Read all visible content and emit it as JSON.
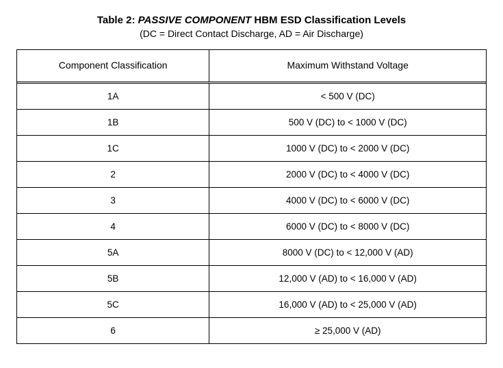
{
  "title": {
    "lead": "Table 2: ",
    "emph": "PASSIVE COMPONENT",
    "rest": " HBM ESD Classification Levels",
    "subtitle": "(DC = Direct Contact Discharge, AD = Air Discharge)"
  },
  "table": {
    "columns": [
      "Component Classification",
      "Maximum Withstand Voltage"
    ],
    "column_widths_pct": [
      41,
      59
    ],
    "rows": [
      [
        "1A",
        "< 500 V (DC)"
      ],
      [
        "1B",
        "500 V (DC) to < 1000 V (DC)"
      ],
      [
        "1C",
        "1000 V (DC) to < 2000 V (DC)"
      ],
      [
        "2",
        "2000 V (DC) to < 4000 V (DC)"
      ],
      [
        "3",
        "4000 V (DC) to < 6000 V (DC)"
      ],
      [
        "4",
        "6000 V (DC) to < 8000 V (DC)"
      ],
      [
        "5A",
        "8000 V (DC) to < 12,000 V (AD)"
      ],
      [
        "5B",
        "12,000 V (AD) to < 16,000 V (AD)"
      ],
      [
        "5C",
        "16,000 V (AD) to < 25,000 V (AD)"
      ],
      [
        "6",
        "≥ 25,000 V (AD)"
      ]
    ],
    "header_fontsize_pt": 14,
    "cell_fontsize_pt": 13.5,
    "border_color": "#000000",
    "background_color": "#ffffff",
    "text_color": "#000000"
  }
}
